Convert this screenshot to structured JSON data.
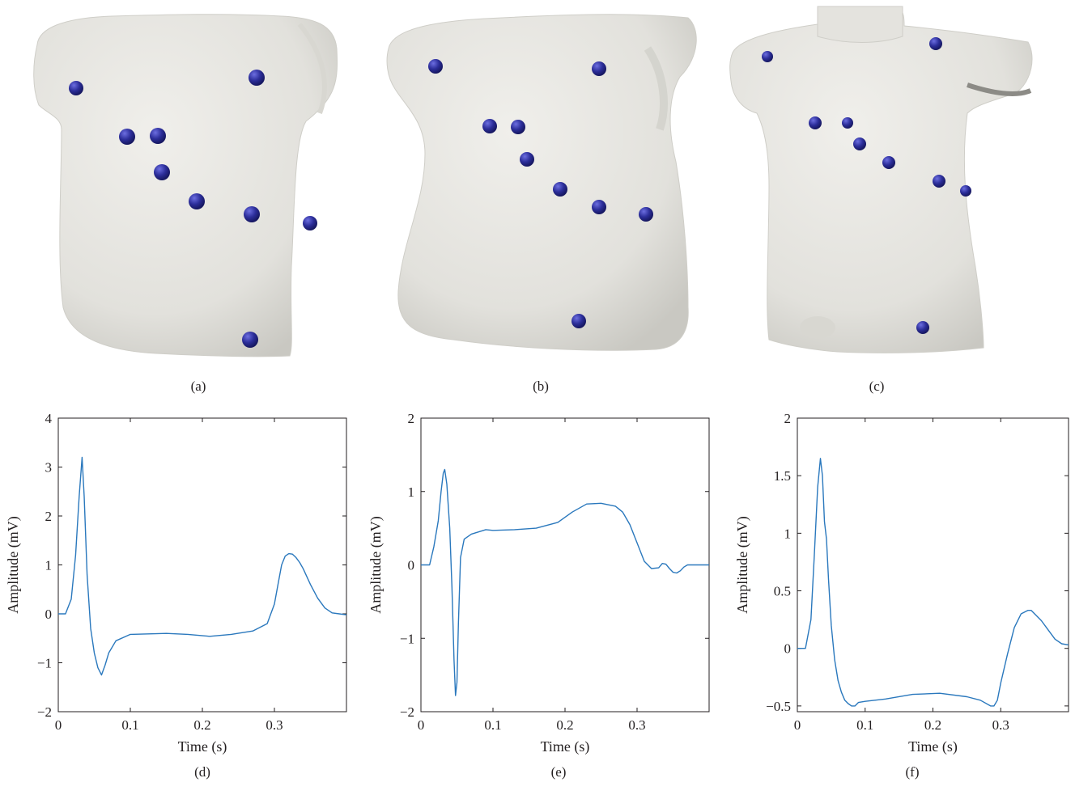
{
  "colors": {
    "electrode": "#27298f",
    "torso_fill": "#e7e6e1",
    "trace": "#2a78bd",
    "axis": "#231f20"
  },
  "captions": {
    "a": "(a)",
    "b": "(b)",
    "c": "(c)",
    "d": "(d)",
    "e": "(e)",
    "f": "(f)"
  },
  "torsos": {
    "a": {
      "electrodes": "blue-sphere-markers",
      "shape": "torso-model-a"
    },
    "b": {
      "electrodes": "blue-sphere-markers",
      "shape": "torso-model-b"
    },
    "c": {
      "electrodes": "blue-sphere-markers",
      "shape": "torso-model-c"
    }
  },
  "chart_data": [
    {
      "type": "line",
      "panel": "d",
      "xlabel": "Time (s)",
      "ylabel": "Amplitude (mV)",
      "xlim": [
        0,
        0.4
      ],
      "ylim": [
        -2,
        4
      ],
      "xticks": [
        0,
        0.1,
        0.2,
        0.3
      ],
      "xtick_labels": [
        "0",
        "0.1",
        "0.2",
        "0.3"
      ],
      "yticks": [
        -2,
        -1,
        0,
        1,
        2,
        3,
        4
      ],
      "ytick_labels": [
        "−2",
        "−1",
        "0",
        "1",
        "2",
        "3",
        "4"
      ],
      "x": [
        0,
        0.01,
        0.018,
        0.024,
        0.029,
        0.033,
        0.036,
        0.04,
        0.045,
        0.05,
        0.055,
        0.06,
        0.065,
        0.07,
        0.08,
        0.1,
        0.15,
        0.18,
        0.21,
        0.24,
        0.27,
        0.29,
        0.3,
        0.305,
        0.31,
        0.315,
        0.32,
        0.325,
        0.33,
        0.335,
        0.34,
        0.35,
        0.36,
        0.37,
        0.38,
        0.39,
        0.4
      ],
      "y": [
        0,
        0,
        0.3,
        1.2,
        2.4,
        3.2,
        2.4,
        0.8,
        -0.3,
        -0.8,
        -1.1,
        -1.25,
        -1.05,
        -0.8,
        -0.55,
        -0.42,
        -0.4,
        -0.42,
        -0.46,
        -0.42,
        -0.35,
        -0.2,
        0.2,
        0.6,
        1.0,
        1.18,
        1.23,
        1.22,
        1.15,
        1.05,
        0.92,
        0.6,
        0.32,
        0.12,
        0.02,
        0,
        -0.02
      ]
    },
    {
      "type": "line",
      "panel": "e",
      "xlabel": "Time (s)",
      "ylabel": "Amplitude (mV)",
      "xlim": [
        0,
        0.4
      ],
      "ylim": [
        -2,
        2
      ],
      "xticks": [
        0,
        0.1,
        0.2,
        0.3
      ],
      "xtick_labels": [
        "0",
        "0.1",
        "0.2",
        "0.3"
      ],
      "yticks": [
        -2,
        -1,
        0,
        1,
        2
      ],
      "ytick_labels": [
        "−2",
        "−1",
        "0",
        "1",
        "2"
      ],
      "x": [
        0,
        0.012,
        0.018,
        0.024,
        0.028,
        0.031,
        0.033,
        0.036,
        0.04,
        0.043,
        0.046,
        0.048,
        0.05,
        0.052,
        0.055,
        0.06,
        0.07,
        0.08,
        0.09,
        0.1,
        0.13,
        0.16,
        0.19,
        0.21,
        0.23,
        0.25,
        0.27,
        0.28,
        0.29,
        0.3,
        0.31,
        0.32,
        0.33,
        0.335,
        0.34,
        0.345,
        0.35,
        0.355,
        0.36,
        0.365,
        0.37,
        0.38,
        0.39,
        0.4
      ],
      "y": [
        0,
        0,
        0.25,
        0.6,
        1.0,
        1.25,
        1.3,
        1.1,
        0.5,
        -0.3,
        -1.3,
        -1.78,
        -1.6,
        -0.8,
        0.1,
        0.35,
        0.42,
        0.45,
        0.48,
        0.47,
        0.48,
        0.5,
        0.58,
        0.72,
        0.83,
        0.84,
        0.8,
        0.72,
        0.55,
        0.3,
        0.05,
        -0.05,
        -0.04,
        0.02,
        0.01,
        -0.05,
        -0.1,
        -0.11,
        -0.08,
        -0.03,
        0,
        0,
        0,
        0
      ]
    },
    {
      "type": "line",
      "panel": "f",
      "xlabel": "Time (s)",
      "ylabel": "Amplitude (mV)",
      "xlim": [
        0,
        0.4
      ],
      "ylim": [
        -0.55,
        2
      ],
      "xticks": [
        0,
        0.1,
        0.2,
        0.3
      ],
      "xtick_labels": [
        "0",
        "0.1",
        "0.2",
        "0.3"
      ],
      "yticks": [
        -0.5,
        0,
        0.5,
        1,
        1.5,
        2
      ],
      "ytick_labels": [
        "−0.5",
        "0",
        "0.5",
        "1",
        "1.5",
        "2"
      ],
      "x": [
        0,
        0.012,
        0.02,
        0.025,
        0.03,
        0.034,
        0.037,
        0.04,
        0.043,
        0.046,
        0.05,
        0.055,
        0.06,
        0.065,
        0.07,
        0.075,
        0.08,
        0.085,
        0.09,
        0.1,
        0.13,
        0.17,
        0.21,
        0.25,
        0.27,
        0.285,
        0.29,
        0.295,
        0.3,
        0.31,
        0.32,
        0.33,
        0.34,
        0.345,
        0.35,
        0.36,
        0.37,
        0.38,
        0.39,
        0.4
      ],
      "y": [
        0,
        0,
        0.25,
        0.8,
        1.4,
        1.65,
        1.5,
        1.1,
        0.95,
        0.6,
        0.2,
        -0.1,
        -0.28,
        -0.38,
        -0.45,
        -0.48,
        -0.5,
        -0.5,
        -0.47,
        -0.46,
        -0.44,
        -0.4,
        -0.39,
        -0.42,
        -0.45,
        -0.5,
        -0.5,
        -0.45,
        -0.3,
        -0.05,
        0.18,
        0.3,
        0.33,
        0.33,
        0.3,
        0.24,
        0.16,
        0.08,
        0.04,
        0.03
      ]
    }
  ]
}
